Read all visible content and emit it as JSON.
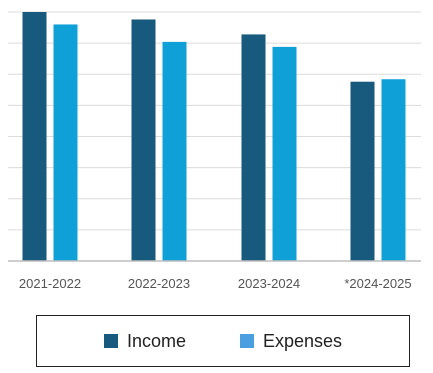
{
  "chart_data": {
    "type": "bar",
    "categories": [
      "2021-2022",
      "2022-2023",
      "2023-2024",
      "*2024-2025"
    ],
    "series": [
      {
        "name": "Income",
        "color": "#185a7d",
        "values": [
          100,
          97,
          91,
          72
        ]
      },
      {
        "name": "Expenses",
        "color": "#0fa0d7",
        "values": [
          95,
          88,
          86,
          73
        ]
      }
    ],
    "ylim": [
      0,
      100
    ],
    "grid": true,
    "legend_position": "bottom",
    "legend_color_expenses": "#4a9fe0"
  }
}
